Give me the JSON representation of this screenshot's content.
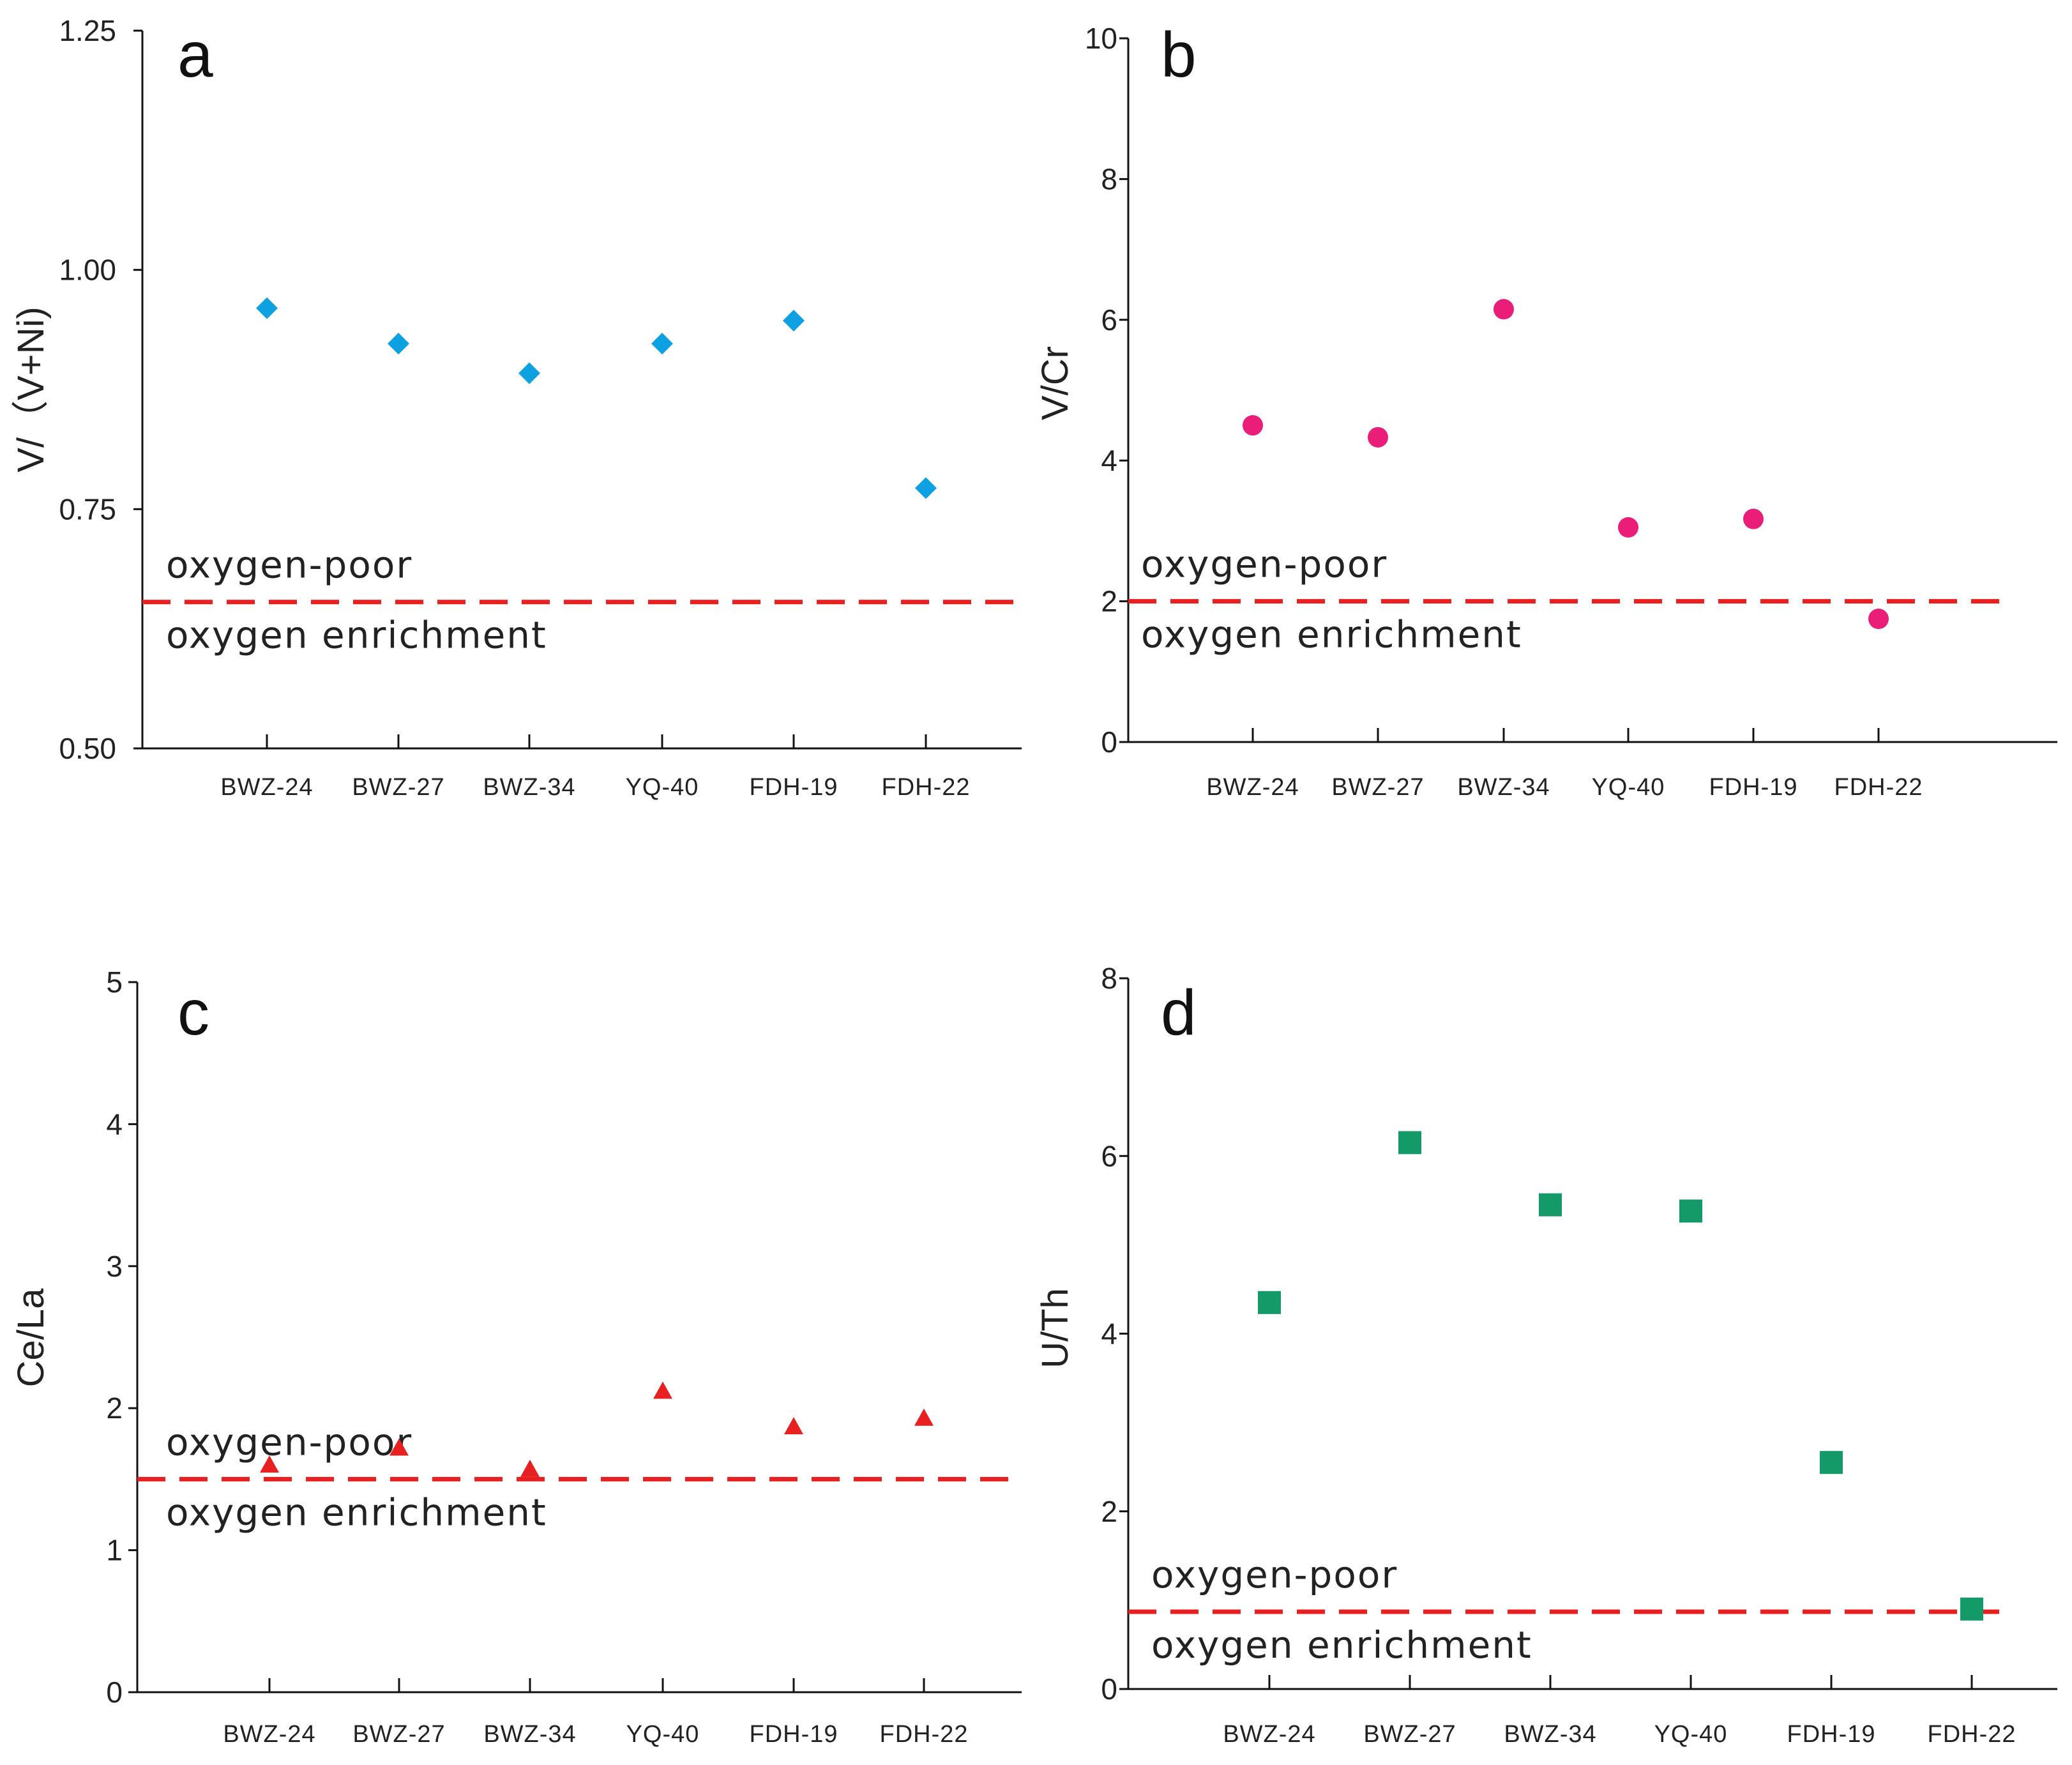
{
  "colors": {
    "a": "#0ea1e2",
    "b": "#ea1e79",
    "c": "#e8201f",
    "d": "#139a68",
    "threshold": "#e8201f"
  },
  "chart_data": [
    {
      "id": "a",
      "type": "scatter",
      "panel_letter": "a",
      "marker": "diamond",
      "ylabel": "V/（V+Ni)",
      "ylim": [
        0.5,
        1.25
      ],
      "yticks": [
        0.5,
        0.75,
        1.0,
        1.25
      ],
      "ytick_labels": [
        "0.50",
        "0.75",
        "1.00",
        "1.25"
      ],
      "categories": [
        "BWZ-24",
        "BWZ-27",
        "BWZ-34",
        "YQ-40",
        "FDH-19",
        "FDH-22"
      ],
      "values": [
        0.96,
        0.923,
        0.892,
        0.923,
        0.947,
        0.772
      ],
      "threshold": 0.653,
      "zone_above": "oxygen-poor",
      "zone_below": "oxygen enrichment"
    },
    {
      "id": "b",
      "type": "scatter",
      "panel_letter": "b",
      "marker": "circle",
      "ylabel": "V/Cr",
      "ylim": [
        0,
        10
      ],
      "yticks": [
        0,
        2,
        4,
        6,
        8,
        10
      ],
      "ytick_labels": [
        "0",
        "2",
        "4",
        "6",
        "8",
        "10"
      ],
      "categories": [
        "BWZ-24",
        "BWZ-27",
        "BWZ-34",
        "YQ-40",
        "FDH-19",
        "FDH-22"
      ],
      "values": [
        4.5,
        4.33,
        6.15,
        3.05,
        3.17,
        1.75
      ],
      "threshold": 2.0,
      "zone_above": "oxygen-poor",
      "zone_below": "oxygen enrichment"
    },
    {
      "id": "c",
      "type": "scatter",
      "panel_letter": "c",
      "marker": "triangle",
      "ylabel": "Ce/La",
      "ylim": [
        0,
        5
      ],
      "yticks": [
        0,
        1,
        2,
        3,
        4,
        5
      ],
      "ytick_labels": [
        "0",
        "1",
        "2",
        "3",
        "4",
        "5"
      ],
      "categories": [
        "BWZ-24",
        "BWZ-27",
        "BWZ-34",
        "YQ-40",
        "FDH-19",
        "FDH-22"
      ],
      "values": [
        1.6,
        1.72,
        1.57,
        2.12,
        1.87,
        1.93
      ],
      "threshold": 1.5,
      "zone_above": "oxygen-poor",
      "zone_below": "oxygen enrichment"
    },
    {
      "id": "d",
      "type": "scatter",
      "panel_letter": "d",
      "marker": "square",
      "ylabel": "U/Th",
      "ylim": [
        0,
        8
      ],
      "yticks": [
        0,
        2,
        4,
        6,
        8
      ],
      "ytick_labels": [
        "0",
        "2",
        "4",
        "6",
        "8"
      ],
      "categories": [
        "BWZ-24",
        "BWZ-27",
        "BWZ-34",
        "YQ-40",
        "FDH-19",
        "FDH-22"
      ],
      "values": [
        4.35,
        6.15,
        5.45,
        5.38,
        2.55,
        0.9
      ],
      "threshold": 0.87,
      "zone_above": "oxygen-poor",
      "zone_below": "oxygen enrichment"
    }
  ]
}
